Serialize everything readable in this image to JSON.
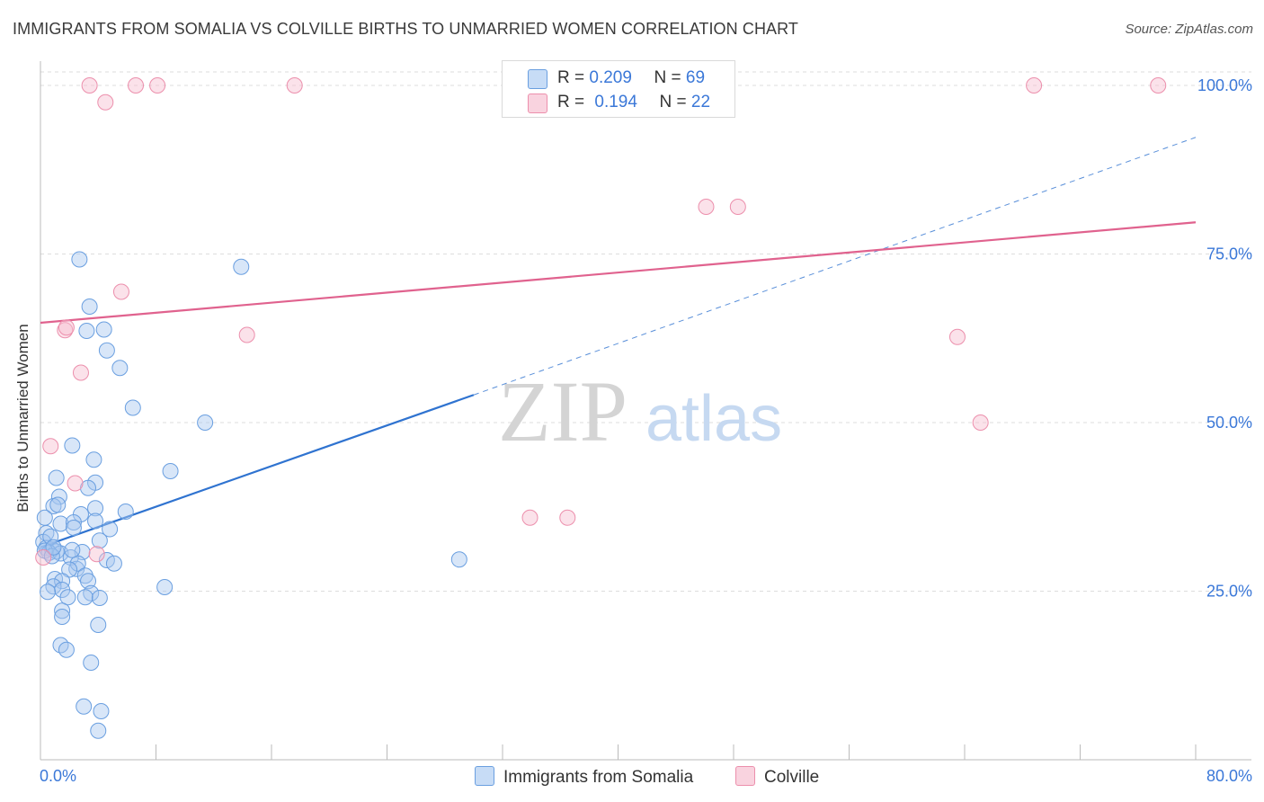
{
  "title": "IMMIGRANTS FROM SOMALIA VS COLVILLE BIRTHS TO UNMARRIED WOMEN CORRELATION CHART",
  "source": "Source: ZipAtlas.com",
  "watermark": {
    "zip": "ZIP",
    "atlas": "atlas"
  },
  "colors": {
    "blue_fill": "#a9c8f0",
    "blue_stroke": "#6a9fe0",
    "blue_line": "#2f73d0",
    "pink_fill": "#f6bfd0",
    "pink_stroke": "#ec8fac",
    "pink_line": "#e0628e",
    "accent_text": "#3b78d8",
    "grid": "#dddddd"
  },
  "legend": {
    "rows": [
      {
        "r_label": "R =",
        "r_value": "0.209",
        "n_label": "N =",
        "n_value": "69"
      },
      {
        "r_label": "R =",
        "r_value": "0.194",
        "n_label": "N =",
        "n_value": "22"
      }
    ]
  },
  "bottom_legend": {
    "series1": "Immigrants from Somalia",
    "series2": "Colville"
  },
  "chart_data": {
    "type": "scatter",
    "title": "IMMIGRANTS FROM SOMALIA VS COLVILLE BIRTHS TO UNMARRIED WOMEN CORRELATION CHART",
    "xlabel": "",
    "ylabel": "Births to Unmarried Women",
    "xlim": [
      0,
      80
    ],
    "ylim": [
      0,
      102
    ],
    "x_tick_labels": [
      "0.0%",
      "80.0%"
    ],
    "y_ticks": [
      25,
      50,
      75,
      100
    ],
    "y_tick_labels": [
      "25.0%",
      "50.0%",
      "75.0%",
      "100.0%"
    ],
    "grid": true,
    "legend_position": "top-center",
    "series": [
      {
        "name": "Immigrants from Somalia",
        "color": "#a9c8f0",
        "R": 0.209,
        "N": 69,
        "points": [
          [
            2.7,
            74.2
          ],
          [
            13.9,
            73.1
          ],
          [
            3.4,
            67.2
          ],
          [
            3.2,
            63.6
          ],
          [
            4.4,
            63.8
          ],
          [
            4.6,
            60.7
          ],
          [
            5.5,
            58.1
          ],
          [
            6.4,
            52.2
          ],
          [
            11.4,
            50.0
          ],
          [
            2.2,
            46.6
          ],
          [
            3.7,
            44.5
          ],
          [
            9.0,
            42.8
          ],
          [
            1.1,
            41.8
          ],
          [
            3.8,
            41.1
          ],
          [
            3.3,
            40.3
          ],
          [
            1.3,
            39.0
          ],
          [
            0.9,
            37.6
          ],
          [
            3.8,
            37.3
          ],
          [
            5.9,
            36.8
          ],
          [
            2.8,
            36.4
          ],
          [
            0.3,
            35.9
          ],
          [
            1.4,
            35.0
          ],
          [
            2.3,
            35.2
          ],
          [
            3.8,
            35.4
          ],
          [
            2.3,
            34.4
          ],
          [
            4.8,
            34.2
          ],
          [
            0.4,
            33.6
          ],
          [
            0.2,
            32.3
          ],
          [
            4.1,
            32.5
          ],
          [
            0.4,
            31.4
          ],
          [
            0.8,
            31.2
          ],
          [
            1.1,
            30.9
          ],
          [
            0.6,
            30.7
          ],
          [
            1.4,
            30.6
          ],
          [
            0.3,
            31.0
          ],
          [
            2.9,
            30.8
          ],
          [
            0.8,
            30.2
          ],
          [
            2.1,
            30.0
          ],
          [
            4.6,
            29.6
          ],
          [
            5.1,
            29.1
          ],
          [
            2.5,
            28.3
          ],
          [
            2.6,
            29.1
          ],
          [
            2.0,
            28.2
          ],
          [
            3.1,
            27.3
          ],
          [
            1.0,
            26.8
          ],
          [
            1.5,
            26.5
          ],
          [
            3.3,
            26.5
          ],
          [
            0.9,
            25.7
          ],
          [
            1.5,
            25.2
          ],
          [
            0.5,
            24.9
          ],
          [
            3.5,
            24.7
          ],
          [
            8.6,
            25.6
          ],
          [
            3.1,
            24.1
          ],
          [
            1.9,
            24.1
          ],
          [
            4.1,
            24.0
          ],
          [
            1.5,
            22.1
          ],
          [
            1.5,
            21.2
          ],
          [
            4.0,
            20.0
          ],
          [
            1.4,
            17.0
          ],
          [
            1.8,
            16.3
          ],
          [
            3.5,
            14.4
          ],
          [
            29.0,
            29.7
          ],
          [
            3.0,
            7.9
          ],
          [
            4.2,
            7.2
          ],
          [
            4.0,
            4.3
          ],
          [
            0.7,
            33.1
          ],
          [
            1.2,
            37.8
          ],
          [
            2.2,
            31.1
          ],
          [
            0.9,
            31.5
          ]
        ]
      },
      {
        "name": "Colville",
        "color": "#f6bfd0",
        "R": 0.194,
        "N": 22,
        "points": [
          [
            3.4,
            100.0
          ],
          [
            6.6,
            100.0
          ],
          [
            8.1,
            100.0
          ],
          [
            17.6,
            100.0
          ],
          [
            68.8,
            100.0
          ],
          [
            77.4,
            100.0
          ],
          [
            4.5,
            97.5
          ],
          [
            46.1,
            82.0
          ],
          [
            48.3,
            82.0
          ],
          [
            5.6,
            69.4
          ],
          [
            1.7,
            63.7
          ],
          [
            1.8,
            64.1
          ],
          [
            14.3,
            63.0
          ],
          [
            63.5,
            62.7
          ],
          [
            2.8,
            57.4
          ],
          [
            65.1,
            50.0
          ],
          [
            0.7,
            46.5
          ],
          [
            2.4,
            41.0
          ],
          [
            33.9,
            35.9
          ],
          [
            36.5,
            35.9
          ],
          [
            3.9,
            30.5
          ],
          [
            0.2,
            30.0
          ]
        ]
      }
    ],
    "trend_lines": [
      {
        "series": "Immigrants from Somalia",
        "x": [
          0,
          30
        ],
        "y": [
          31.5,
          54.1
        ],
        "dashed_extension_to": [
          80,
          92.3
        ]
      },
      {
        "series": "Colville",
        "x": [
          0,
          80
        ],
        "y": [
          64.8,
          79.7
        ]
      }
    ]
  }
}
